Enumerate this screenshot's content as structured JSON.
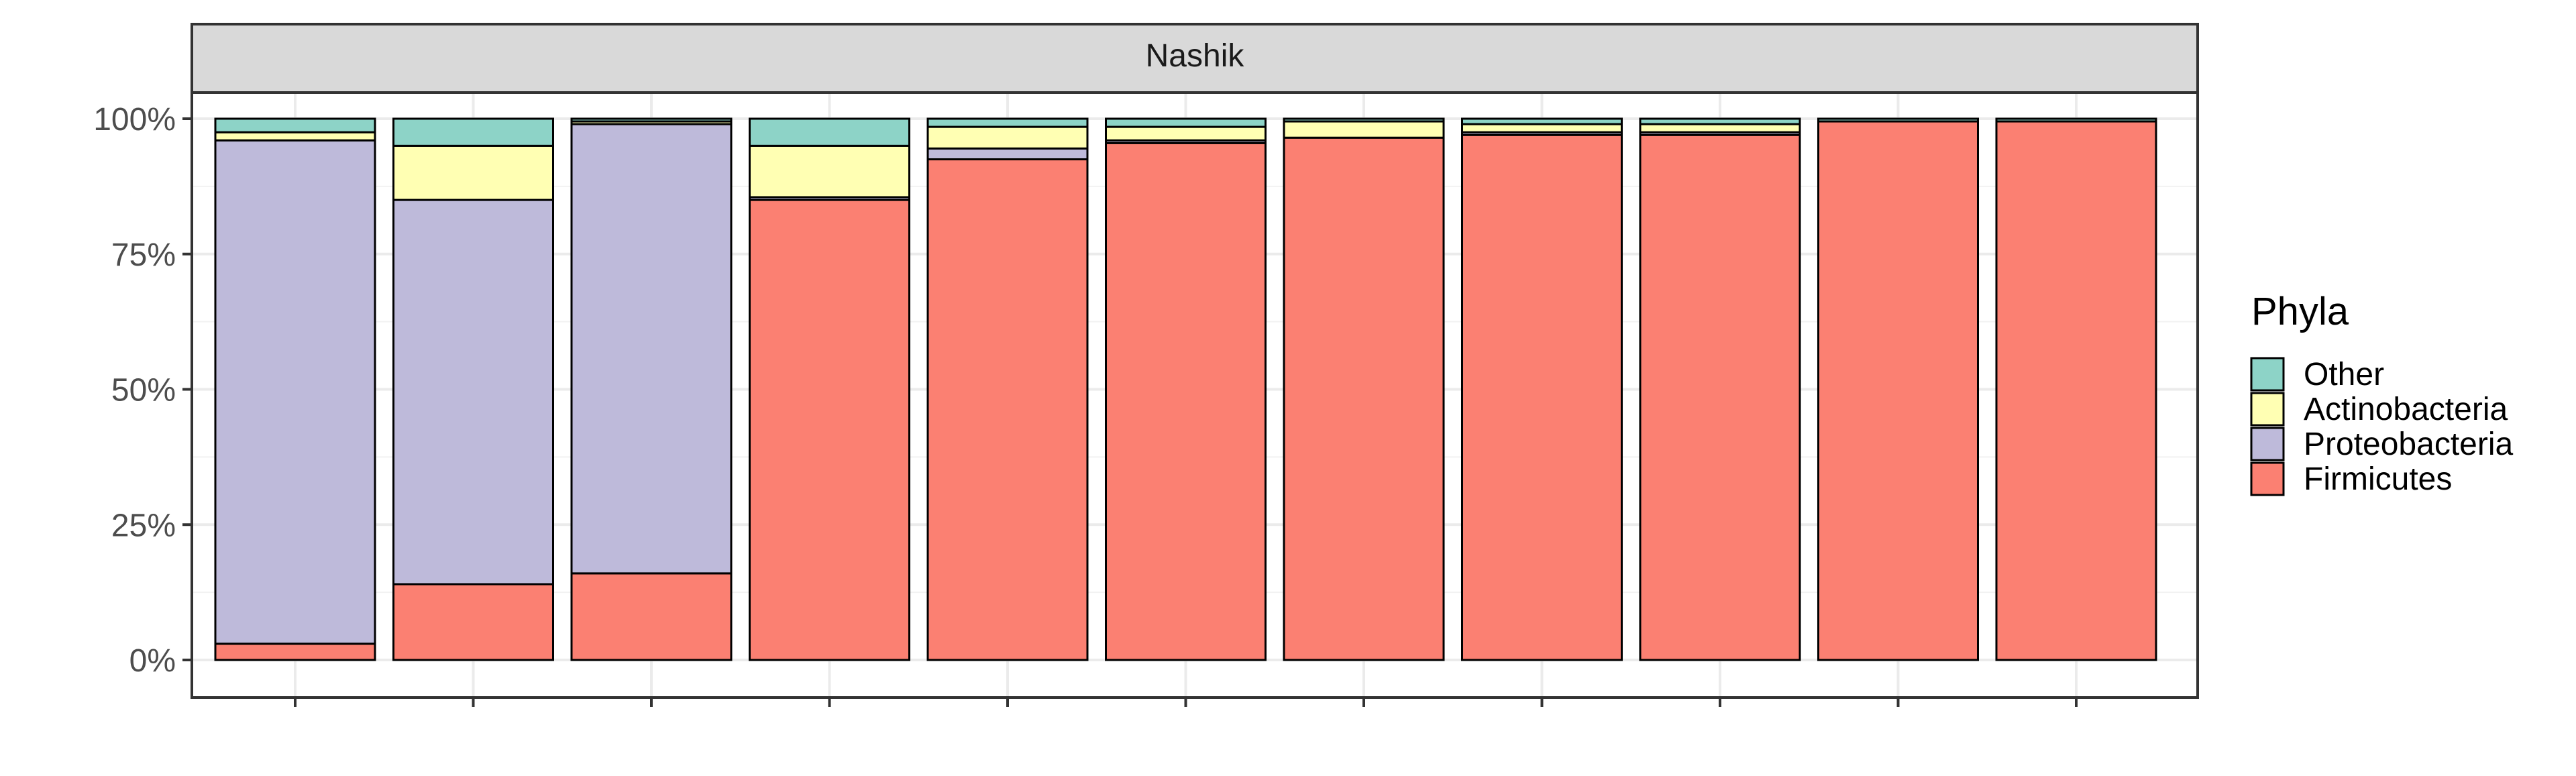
{
  "chart_data": {
    "type": "bar",
    "stacked": true,
    "facet_label": "Nashik",
    "xlabel": "",
    "ylabel": "",
    "ylim": [
      0,
      1
    ],
    "y_ticks": [
      0,
      0.25,
      0.5,
      0.75,
      1.0
    ],
    "y_tick_labels": [
      "0%",
      "25%",
      "50%",
      "75%",
      "100%"
    ],
    "x_tick_count": 11,
    "categories": [
      "",
      "",
      "",
      "",
      "",
      "",
      "",
      "",
      "",
      "",
      ""
    ],
    "series": [
      {
        "name": "Firmicutes",
        "color": "#FB8072",
        "values": [
          0.03,
          0.14,
          0.16,
          0.85,
          0.925,
          0.955,
          0.965,
          0.97,
          0.97,
          0.995,
          0.995
        ]
      },
      {
        "name": "Proteobacteria",
        "color": "#BEBADA",
        "values": [
          0.93,
          0.71,
          0.83,
          0.005,
          0.02,
          0.005,
          0.0,
          0.005,
          0.005,
          0.0,
          0.0
        ]
      },
      {
        "name": "Actinobacteria",
        "color": "#FFFFB3",
        "values": [
          0.015,
          0.1,
          0.005,
          0.095,
          0.04,
          0.025,
          0.03,
          0.015,
          0.015,
          0.0,
          0.0
        ]
      },
      {
        "name": "Other",
        "color": "#8DD3C7",
        "values": [
          0.025,
          0.05,
          0.005,
          0.05,
          0.015,
          0.015,
          0.005,
          0.01,
          0.01,
          0.005,
          0.005
        ]
      }
    ],
    "legend": {
      "title": "Phyla",
      "position": "right",
      "entries": [
        "Other",
        "Actinobacteria",
        "Proteobacteria",
        "Firmicutes"
      ]
    },
    "grid": true,
    "theme": "bw"
  }
}
